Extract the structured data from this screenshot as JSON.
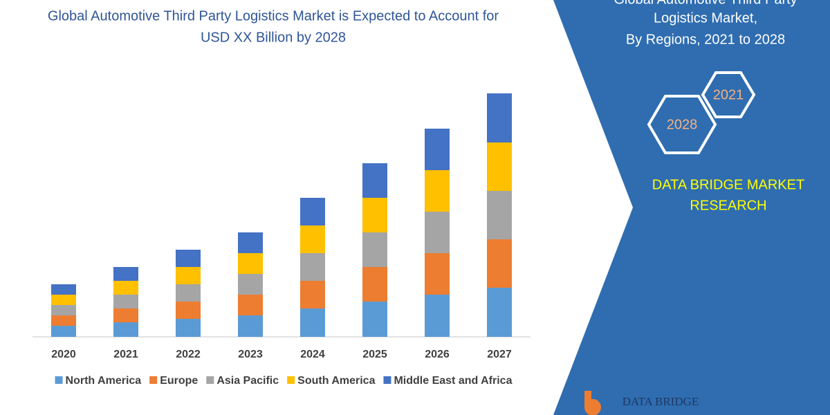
{
  "chart_data": {
    "type": "bar",
    "stacked": true,
    "title": [
      "Global Automotive Third Party Logistics Market is Expected to Account for",
      "USD XX Billion by 2028"
    ],
    "categories": [
      "2020",
      "2021",
      "2022",
      "2023",
      "2024",
      "2025",
      "2026",
      "2027"
    ],
    "series": [
      {
        "name": "North America",
        "color": "#5b9bd5",
        "values": [
          16,
          21,
          26,
          31,
          41,
          51,
          61,
          71
        ]
      },
      {
        "name": "Europe",
        "color": "#ed7d31",
        "values": [
          15,
          20,
          25,
          30,
          40,
          50,
          60,
          70
        ]
      },
      {
        "name": "Asia Pacific",
        "color": "#a5a5a5",
        "values": [
          15,
          20,
          25,
          30,
          40,
          50,
          60,
          70
        ]
      },
      {
        "name": "South America",
        "color": "#ffc000",
        "values": [
          15,
          20,
          25,
          30,
          40,
          50,
          60,
          70
        ]
      },
      {
        "name": "Middle East and Africa",
        "color": "#4472c4",
        "values": [
          15,
          20,
          25,
          30,
          40,
          50,
          60,
          71
        ]
      }
    ],
    "legend": "bottom"
  },
  "panel": {
    "title": [
      "Global Automotive Third Party",
      "Logistics Market,",
      "By Regions, 2021 to 2028"
    ],
    "hexagons": [
      "2021",
      "2028"
    ],
    "brand": [
      "DATA BRIDGE MARKET",
      "RESEARCH"
    ],
    "logo": "DATA BRIDGE"
  }
}
